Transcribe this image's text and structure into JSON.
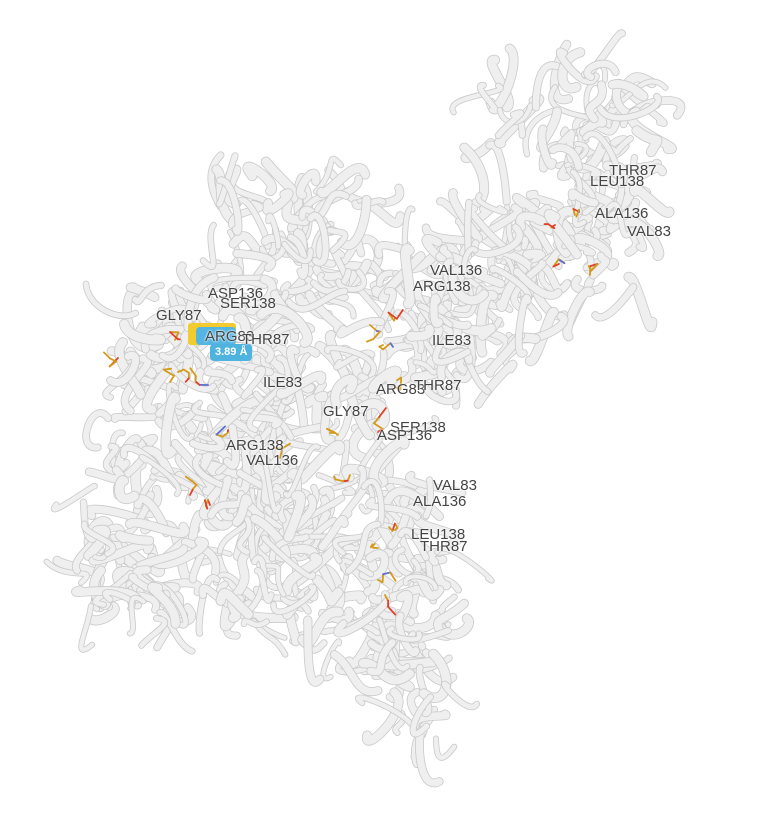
{
  "colors": {
    "ribbon": "#efefef",
    "ribbon_edge": "#c9c9c9",
    "carbon": "#d49a1a",
    "oxygen": "#e0402a",
    "nitrogen": "#5a6fd6",
    "label_text": "#444444",
    "highlight_yellow": "#f2cc2e",
    "highlight_blue": "#55b5e2"
  },
  "measurement": {
    "distance_label": "3.89 Å"
  },
  "residue_labels": [
    {
      "text": "THR87"
    },
    {
      "text": "LEU138"
    },
    {
      "text": "ALA136"
    },
    {
      "text": "VAL83"
    },
    {
      "text": "VAL136"
    },
    {
      "text": "ARG138"
    },
    {
      "text": "ASP136"
    },
    {
      "text": "SER138"
    },
    {
      "text": "GLY87"
    },
    {
      "text": "ARG83"
    },
    {
      "text": "THR87"
    },
    {
      "text": "ILE83"
    },
    {
      "text": "ILE83"
    },
    {
      "text": "ARG83"
    },
    {
      "text": "THR87"
    },
    {
      "text": "GLY87"
    },
    {
      "text": "SER138"
    },
    {
      "text": "ASP136"
    },
    {
      "text": "ARG138"
    },
    {
      "text": "VAL136"
    },
    {
      "text": "VAL83"
    },
    {
      "text": "ALA136"
    },
    {
      "text": "LEU138"
    },
    {
      "text": "THR87"
    }
  ]
}
